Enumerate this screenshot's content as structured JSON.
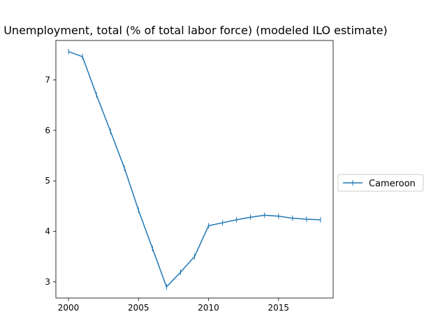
{
  "chart_data": {
    "type": "line",
    "title": "Unemployment, total (% of total labor force) (modeled ILO estimate)",
    "xlabel": "",
    "ylabel": "",
    "xlim": [
      1999.1,
      2018.9
    ],
    "ylim": [
      2.68,
      7.78
    ],
    "x_ticks": [
      2000,
      2005,
      2010,
      2015
    ],
    "y_ticks": [
      3,
      4,
      5,
      6,
      7
    ],
    "grid": false,
    "legend_position": "right",
    "series": [
      {
        "name": "Cameroon",
        "color": "#1f77b4",
        "marker": "vertical-line",
        "x": [
          2000,
          2001,
          2002,
          2003,
          2004,
          2005,
          2006,
          2007,
          2008,
          2009,
          2010,
          2011,
          2012,
          2013,
          2014,
          2015,
          2016,
          2017,
          2018
        ],
        "y": [
          7.56,
          7.46,
          6.7,
          5.98,
          5.25,
          4.42,
          3.66,
          2.9,
          3.19,
          3.5,
          4.11,
          4.17,
          4.23,
          4.28,
          4.32,
          4.3,
          4.26,
          4.24,
          4.23
        ]
      }
    ]
  }
}
